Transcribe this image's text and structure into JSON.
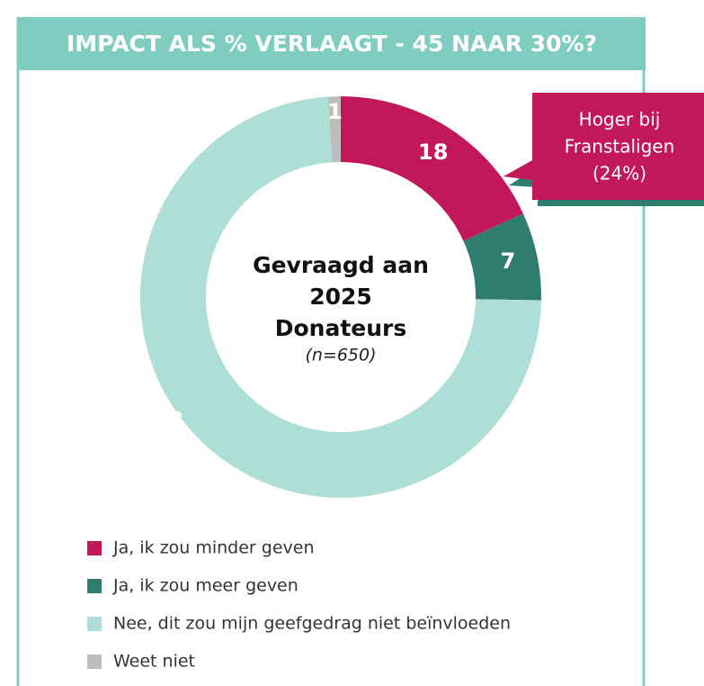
{
  "chart_data": {
    "type": "donut",
    "title": "IMPACT ALS % VERLAAGT - 45 NAAR 30%?",
    "center_text": [
      "Gevraagd aan",
      "2025",
      "Donateurs"
    ],
    "center_note": "(n=650)",
    "annotation": [
      "Hoger bij",
      "Franstaligen",
      "(24%)"
    ],
    "categories": [
      "Ja, ik zou minder geven",
      "Ja, ik zou meer geven",
      "Nee, dit zou mijn geefgedrag niet beïnvloeden",
      "Weet niet"
    ],
    "values": [
      18,
      7,
      73,
      1
    ],
    "colors": [
      "#c2185b",
      "#2e7d6e",
      "#addfd6",
      "#bdbdbd"
    ],
    "header_color": "#7fcdc0"
  }
}
